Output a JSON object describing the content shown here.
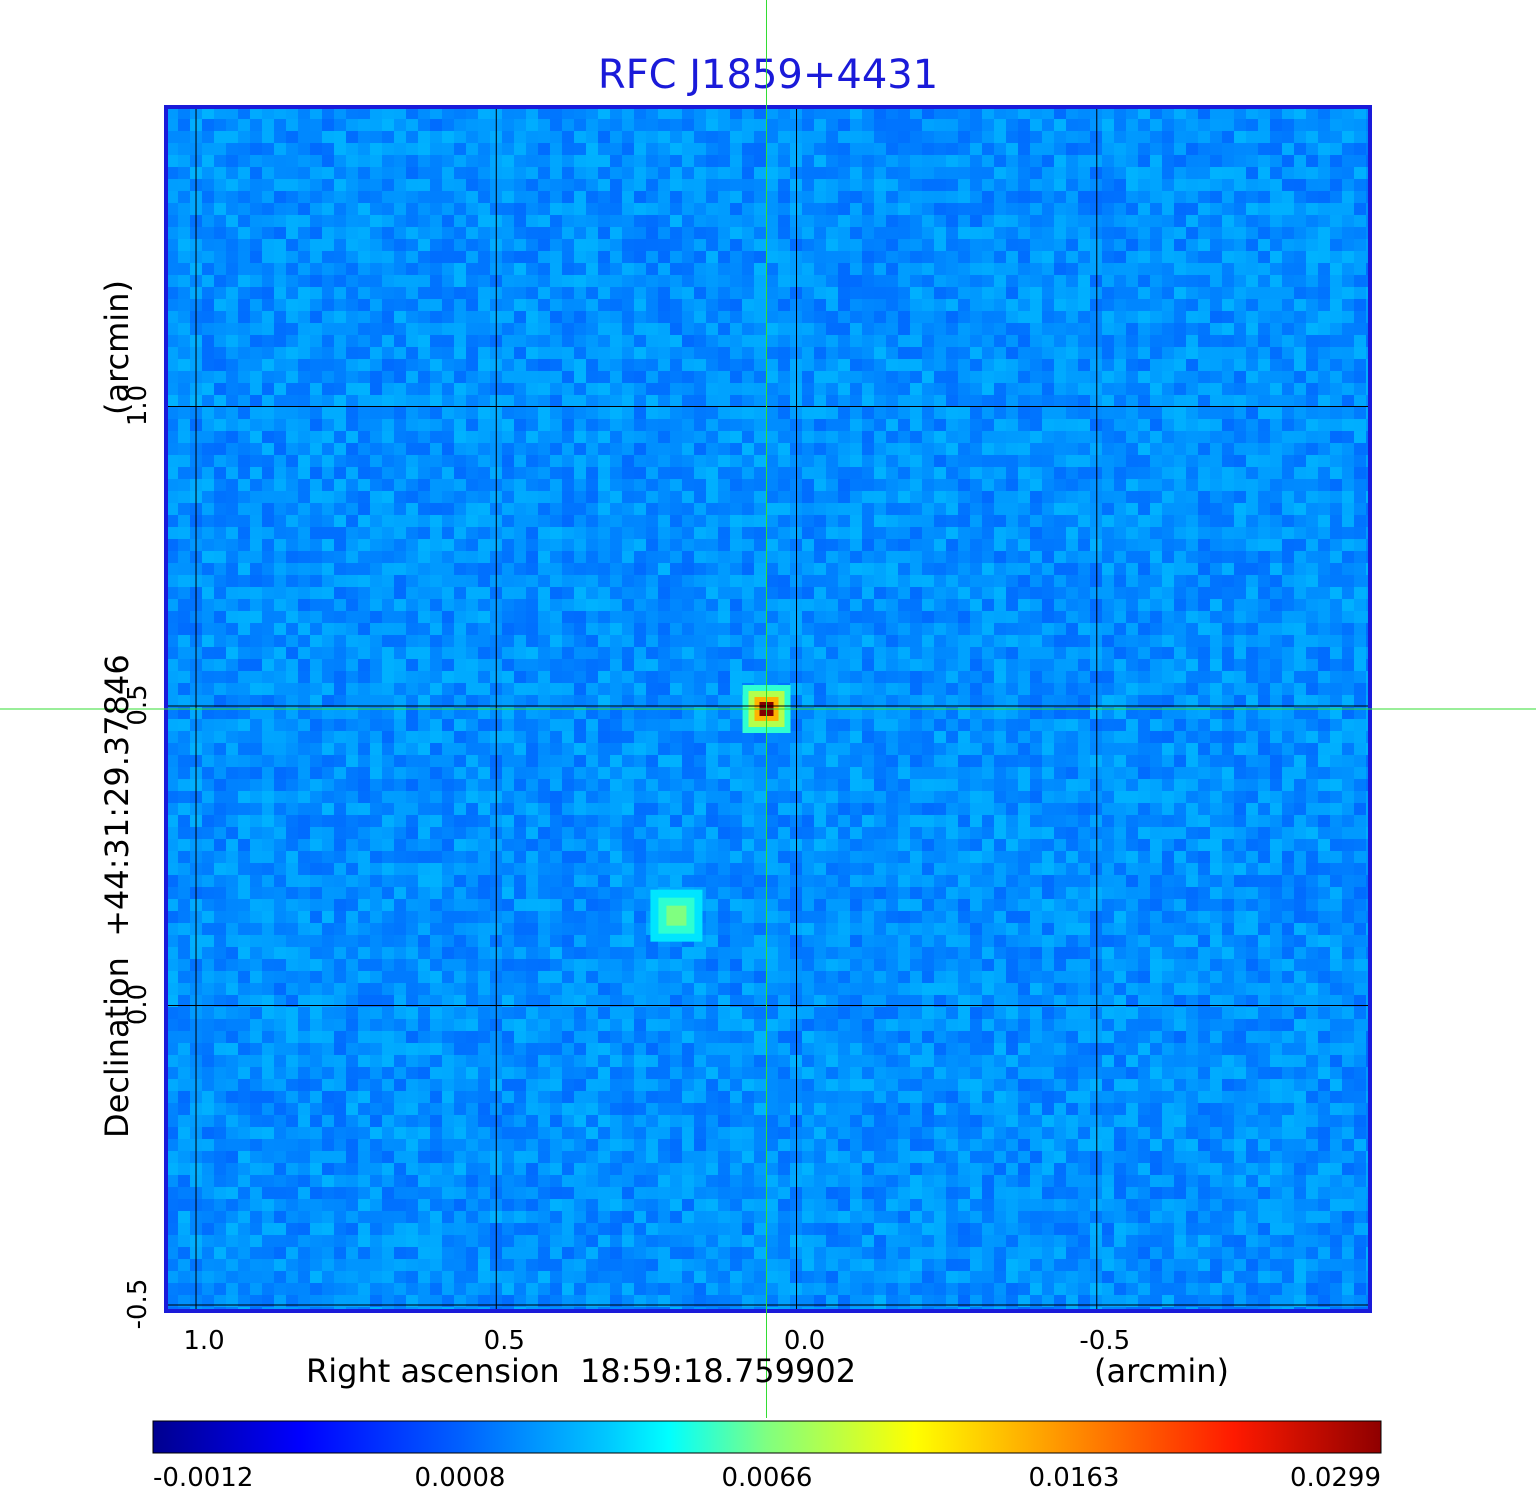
{
  "chart_data": {
    "type": "heatmap",
    "title": "RFC J1859+4431",
    "xlabel": "Right ascension  18:59:18.759902",
    "xunit": "(arcmin)",
    "ylabel": "Declination  +44:31:29.37846",
    "yunit": "(arcmin)",
    "x_ticks": [
      "1.0",
      "0.5",
      "0.0",
      "-0.5"
    ],
    "x_tick_values": [
      1.0,
      0.5,
      0.0,
      -0.5
    ],
    "y_ticks": [
      "1.0",
      "0.5",
      "0.0",
      "-0.5"
    ],
    "y_tick_values": [
      1.0,
      0.5,
      0.0,
      -0.5
    ],
    "xlim": [
      1.05,
      -0.955
    ],
    "ylim": [
      -0.51,
      1.5
    ],
    "grid": true,
    "crosshair": {
      "x": 0.05,
      "y": 0.495
    },
    "colorbar": {
      "orientation": "horizontal",
      "ticks": [
        "-0.0012",
        "0.0008",
        "0.0066",
        "0.0163",
        "0.0299"
      ],
      "tick_values": [
        -0.0012,
        0.0008,
        0.0066,
        0.0163,
        0.0299
      ],
      "colormap": "jet"
    },
    "sources": [
      {
        "x": 0.05,
        "y": 0.495,
        "peak": 0.0299
      },
      {
        "x": 0.2,
        "y": 0.15,
        "peak": 0.0066
      }
    ],
    "background_level": 0.0
  },
  "colors": {
    "frame": "#1a1ad9",
    "crosshair": "#33dd33",
    "grid": "#000000"
  }
}
